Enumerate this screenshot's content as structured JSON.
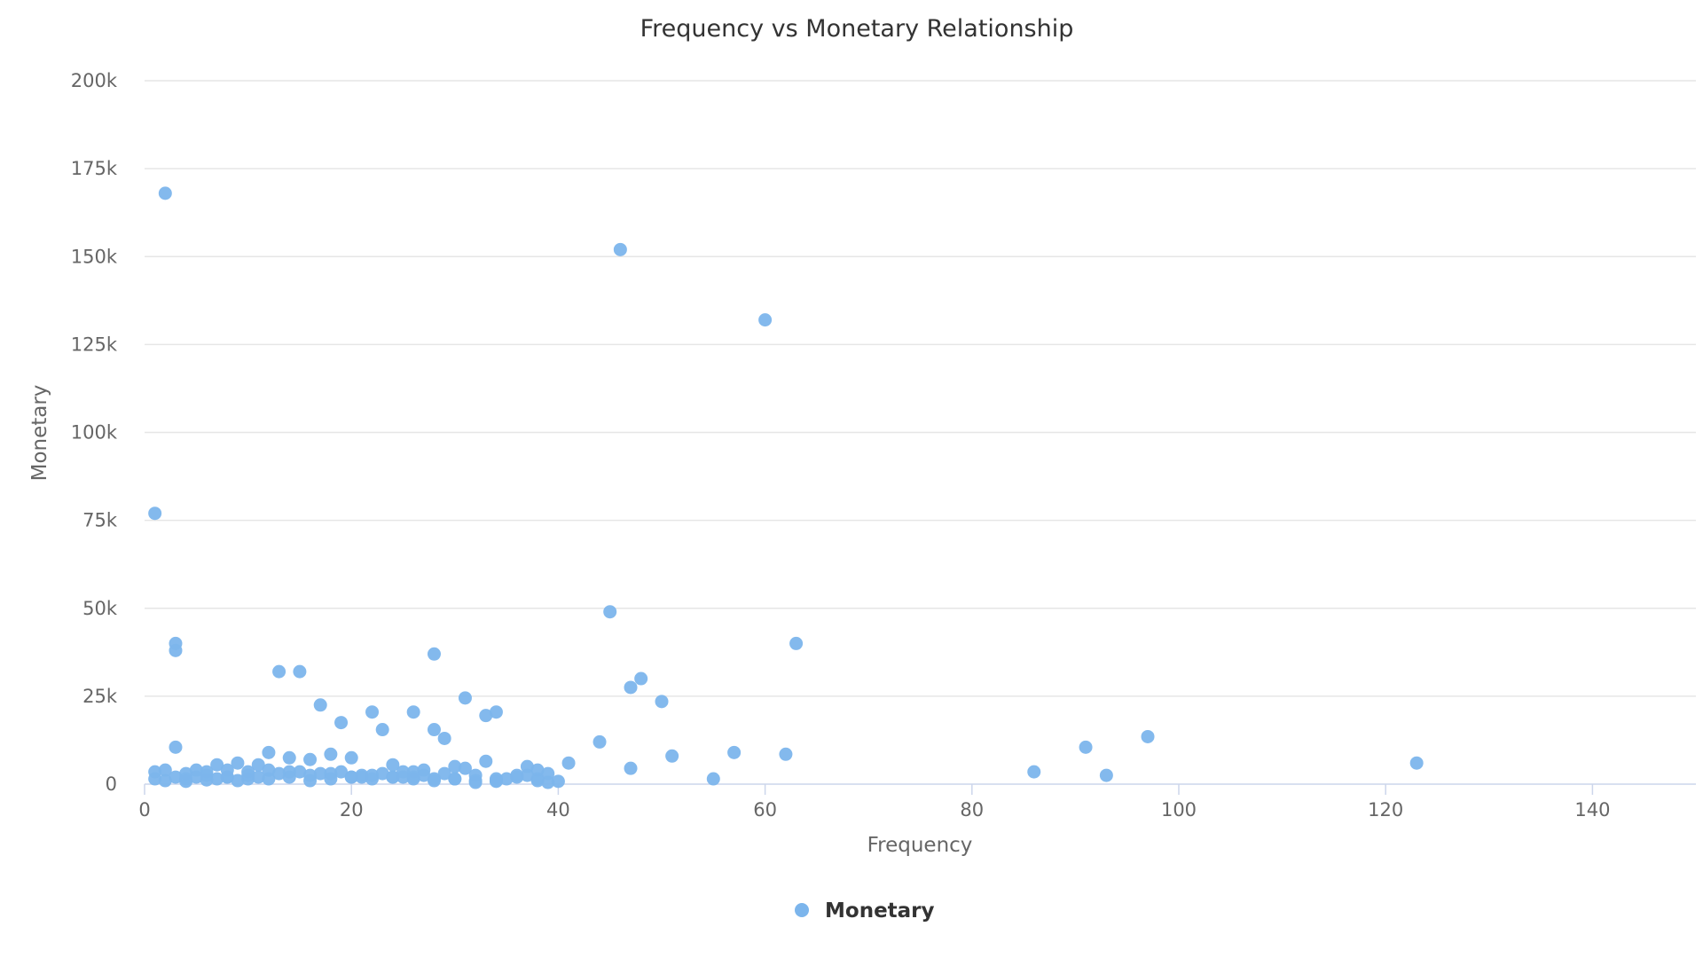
{
  "chart_data": {
    "type": "scatter",
    "title": "Frequency vs Monetary Relationship",
    "xlabel": "Frequency",
    "ylabel": "Monetary",
    "xlim": [
      0,
      150
    ],
    "ylim": [
      0,
      200000
    ],
    "x_ticks": [
      0,
      20,
      40,
      60,
      80,
      100,
      120,
      140
    ],
    "x_tick_labels": [
      "0",
      "20",
      "40",
      "60",
      "80",
      "100",
      "120",
      "140"
    ],
    "y_ticks": [
      0,
      25000,
      50000,
      75000,
      100000,
      125000,
      150000,
      175000,
      200000
    ],
    "y_tick_labels": [
      "0",
      "25k",
      "50k",
      "75k",
      "100k",
      "125k",
      "150k",
      "175k",
      "200k"
    ],
    "grid": "horizontal",
    "legend_position": "bottom-center",
    "series": [
      {
        "name": "Monetary",
        "color": "#7cb5ec",
        "x": [
          2,
          46,
          60,
          1,
          45,
          63,
          3,
          3,
          28,
          13,
          15,
          48,
          47,
          31,
          50,
          17,
          22,
          34,
          33,
          26,
          19,
          23,
          28,
          29,
          44,
          3,
          97,
          91,
          12,
          18,
          62,
          57,
          14,
          51,
          20,
          16,
          7,
          9,
          11,
          41,
          123,
          33,
          24,
          37,
          5,
          86,
          38,
          30,
          47,
          31,
          26,
          93,
          39,
          32,
          55,
          35,
          1,
          2,
          4,
          6,
          8,
          10,
          13,
          15,
          17,
          19,
          21,
          23,
          25,
          27,
          29,
          34,
          37,
          1,
          2,
          3,
          4,
          5,
          6,
          7,
          8,
          9,
          10,
          11,
          12,
          14,
          16,
          18,
          20,
          22,
          24,
          26,
          28,
          30,
          32,
          34,
          36,
          38,
          39,
          25,
          27,
          21,
          12,
          14,
          16,
          18,
          20,
          22,
          24,
          26,
          28,
          30,
          32,
          34,
          36,
          38,
          40,
          10,
          8,
          6,
          4
        ],
        "y": [
          168000,
          152000,
          132000,
          77000,
          49000,
          40000,
          40000,
          38000,
          37000,
          32000,
          32000,
          30000,
          27500,
          24500,
          23500,
          22500,
          20500,
          20500,
          19500,
          20500,
          17500,
          15500,
          15500,
          13000,
          12000,
          10500,
          13500,
          10500,
          9000,
          8500,
          8500,
          9000,
          7500,
          8000,
          7500,
          7000,
          5500,
          6000,
          5500,
          6000,
          6000,
          6500,
          5500,
          5000,
          4000,
          3500,
          4000,
          5000,
          4500,
          4500,
          3500,
          2500,
          3000,
          2500,
          1500,
          1500,
          3500,
          4000,
          3000,
          3500,
          4000,
          3500,
          3000,
          3500,
          3000,
          3500,
          2500,
          3000,
          3500,
          4000,
          3000,
          1500,
          2500,
          1500,
          1000,
          2000,
          1500,
          2000,
          2500,
          1500,
          2000,
          1000,
          1500,
          2000,
          1500,
          2000,
          1000,
          1500,
          2000,
          1500,
          2000,
          1500,
          1000,
          1500,
          500,
          1000,
          2000,
          1500,
          500,
          2000,
          2500,
          2000,
          4000,
          3500,
          2500,
          3000,
          2000,
          2500,
          2000,
          2000,
          1500,
          1500,
          1000,
          800,
          2500,
          1000,
          800,
          2500,
          2000,
          1200,
          800
        ]
      }
    ]
  }
}
